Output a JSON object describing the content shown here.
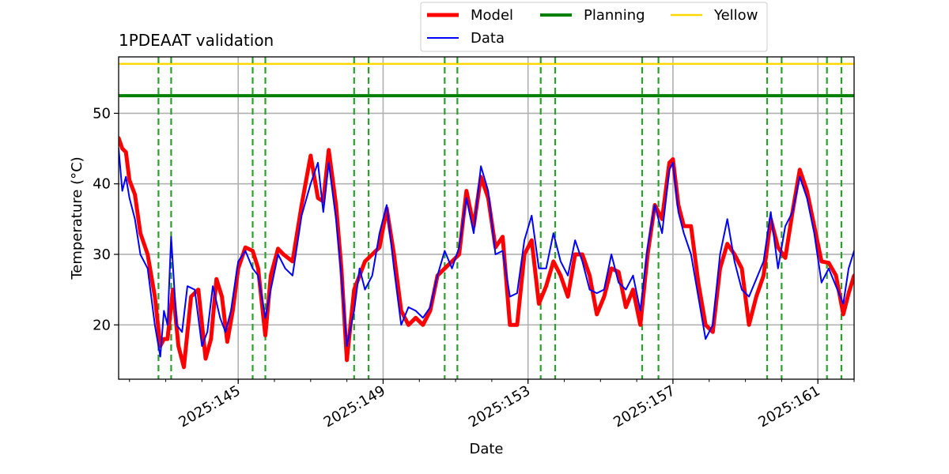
{
  "chart_data": {
    "type": "line",
    "title": "1PDEAAT validation",
    "xlabel": "Date",
    "ylabel": "Temperature ($^\\circ$C)",
    "ylabel_display": "Temperature (°C)",
    "xlim": [
      141.7,
      162.0
    ],
    "ylim": [
      12.3,
      58.0
    ],
    "xticks": [
      145,
      149,
      153,
      157,
      161
    ],
    "xtick_labels": [
      "2025:145",
      "2025:149",
      "2025:153",
      "2025:157",
      "2025:161"
    ],
    "yticks": [
      20,
      30,
      40,
      50
    ],
    "ytick_labels": [
      "20",
      "30",
      "40",
      "50"
    ],
    "grid": true,
    "legend": {
      "placement": "top-center-outside",
      "entries": [
        "Model",
        "Data",
        "Planning",
        "Yellow"
      ]
    },
    "hlines": [
      {
        "name": "Planning",
        "y": 52.5,
        "color": "#008000"
      },
      {
        "name": "Yellow",
        "y": 57.0,
        "color": "#ffd700"
      }
    ],
    "vlines": {
      "color": "#2ca02c",
      "x": [
        142.8,
        143.15,
        145.4,
        145.75,
        148.2,
        148.6,
        150.7,
        151.05,
        153.35,
        153.75,
        156.15,
        156.6,
        159.6,
        160.0,
        161.25,
        161.65
      ]
    },
    "series": [
      {
        "name": "Model",
        "color": "#ff0000",
        "x": [
          141.7,
          141.8,
          141.9,
          142.0,
          142.15,
          142.3,
          142.5,
          142.7,
          142.85,
          142.95,
          143.05,
          143.2,
          143.35,
          143.5,
          143.7,
          143.9,
          144.1,
          144.25,
          144.4,
          144.55,
          144.7,
          144.85,
          145.0,
          145.2,
          145.4,
          145.55,
          145.75,
          145.9,
          146.1,
          146.25,
          146.5,
          146.75,
          147.0,
          147.2,
          147.35,
          147.5,
          147.7,
          147.85,
          148.0,
          148.2,
          148.35,
          148.5,
          148.7,
          148.9,
          149.1,
          149.3,
          149.5,
          149.7,
          149.9,
          150.1,
          150.3,
          150.5,
          150.7,
          150.9,
          151.1,
          151.3,
          151.5,
          151.7,
          151.9,
          152.1,
          152.3,
          152.5,
          152.7,
          152.9,
          153.1,
          153.3,
          153.5,
          153.7,
          153.9,
          154.1,
          154.3,
          154.5,
          154.7,
          154.9,
          155.1,
          155.3,
          155.5,
          155.7,
          155.9,
          156.1,
          156.3,
          156.5,
          156.7,
          156.9,
          157.0,
          157.15,
          157.3,
          157.5,
          157.7,
          157.9,
          158.1,
          158.3,
          158.5,
          158.7,
          158.9,
          159.1,
          159.3,
          159.5,
          159.7,
          159.9,
          160.1,
          160.3,
          160.5,
          160.7,
          160.9,
          161.1,
          161.3,
          161.5,
          161.7,
          161.85,
          162.0
        ],
        "y": [
          46.5,
          45.0,
          44.5,
          40.5,
          38.5,
          33.0,
          30.0,
          24.0,
          17.0,
          18.0,
          18.0,
          25.0,
          17.0,
          14.0,
          24.0,
          25.0,
          15.2,
          18.0,
          26.5,
          24.0,
          17.6,
          22.0,
          28.0,
          31.0,
          30.5,
          28.0,
          18.5,
          27.0,
          30.8,
          30.0,
          29.0,
          37.0,
          44.0,
          38.0,
          37.5,
          44.8,
          37.0,
          28.0,
          15.0,
          25.0,
          27.0,
          29.0,
          30.0,
          31.0,
          36.5,
          30.0,
          22.0,
          20.0,
          21.0,
          20.0,
          22.0,
          27.0,
          28.0,
          29.0,
          30.0,
          39.0,
          34.0,
          41.0,
          38.0,
          31.0,
          32.5,
          20.0,
          20.0,
          30.0,
          32.0,
          23.0,
          25.5,
          29.0,
          27.0,
          24.0,
          30.0,
          30.0,
          27.0,
          21.5,
          24.0,
          28.0,
          27.5,
          22.5,
          25.0,
          20.0,
          30.0,
          37.0,
          35.0,
          43.0,
          43.5,
          37.0,
          34.0,
          34.0,
          26.0,
          20.0,
          19.0,
          28.0,
          31.5,
          30.0,
          28.0,
          20.0,
          24.0,
          27.0,
          35.0,
          31.0,
          29.5,
          36.0,
          42.0,
          39.0,
          34.0,
          29.0,
          28.8,
          27.0,
          21.5,
          24.5,
          27.0
        ]
      },
      {
        "name": "Data",
        "color": "#0000ff",
        "x": [
          141.7,
          141.8,
          141.9,
          142.0,
          142.15,
          142.3,
          142.5,
          142.7,
          142.85,
          142.95,
          143.05,
          143.15,
          143.3,
          143.45,
          143.6,
          143.8,
          144.0,
          144.15,
          144.3,
          144.5,
          144.65,
          144.8,
          145.0,
          145.2,
          145.4,
          145.55,
          145.75,
          145.9,
          146.1,
          146.3,
          146.5,
          146.75,
          147.0,
          147.2,
          147.35,
          147.5,
          147.7,
          147.85,
          148.0,
          148.2,
          148.35,
          148.5,
          148.7,
          148.9,
          149.1,
          149.3,
          149.5,
          149.7,
          149.9,
          150.1,
          150.3,
          150.5,
          150.7,
          150.9,
          151.1,
          151.3,
          151.5,
          151.7,
          151.9,
          152.1,
          152.3,
          152.5,
          152.7,
          152.9,
          153.1,
          153.3,
          153.5,
          153.7,
          153.9,
          154.1,
          154.3,
          154.5,
          154.7,
          154.9,
          155.1,
          155.3,
          155.5,
          155.7,
          155.9,
          156.1,
          156.3,
          156.5,
          156.7,
          156.9,
          157.0,
          157.15,
          157.3,
          157.5,
          157.7,
          157.9,
          158.1,
          158.3,
          158.5,
          158.7,
          158.9,
          159.1,
          159.3,
          159.5,
          159.7,
          159.9,
          160.1,
          160.3,
          160.5,
          160.7,
          160.9,
          161.1,
          161.3,
          161.5,
          161.7,
          161.85,
          162.0
        ],
        "y": [
          45.0,
          39.0,
          41.0,
          38.0,
          35.0,
          30.0,
          28.0,
          20.0,
          15.5,
          22.0,
          20.0,
          32.5,
          20.0,
          19.0,
          25.5,
          25.0,
          17.0,
          19.0,
          25.5,
          21.0,
          19.0,
          22.0,
          29.0,
          30.5,
          28.0,
          27.0,
          21.0,
          25.0,
          30.0,
          28.0,
          27.0,
          35.5,
          40.0,
          43.0,
          36.0,
          43.0,
          35.0,
          27.0,
          17.0,
          22.0,
          28.0,
          25.0,
          27.0,
          33.0,
          37.0,
          28.0,
          20.0,
          22.5,
          22.0,
          21.0,
          22.5,
          27.0,
          30.5,
          28.0,
          31.0,
          38.0,
          33.0,
          42.5,
          39.0,
          30.0,
          30.5,
          24.0,
          24.5,
          32.0,
          35.5,
          28.0,
          28.0,
          33.0,
          29.0,
          27.0,
          32.0,
          29.0,
          25.0,
          24.5,
          25.0,
          30.0,
          26.0,
          25.0,
          27.0,
          22.0,
          31.0,
          37.0,
          33.0,
          42.0,
          43.0,
          36.0,
          33.0,
          30.0,
          24.0,
          18.0,
          20.0,
          30.0,
          35.0,
          29.0,
          25.0,
          24.0,
          26.5,
          29.0,
          36.0,
          28.0,
          34.0,
          36.0,
          41.0,
          38.0,
          33.0,
          26.0,
          28.0,
          25.5,
          23.0,
          28.0,
          30.5
        ]
      }
    ]
  }
}
